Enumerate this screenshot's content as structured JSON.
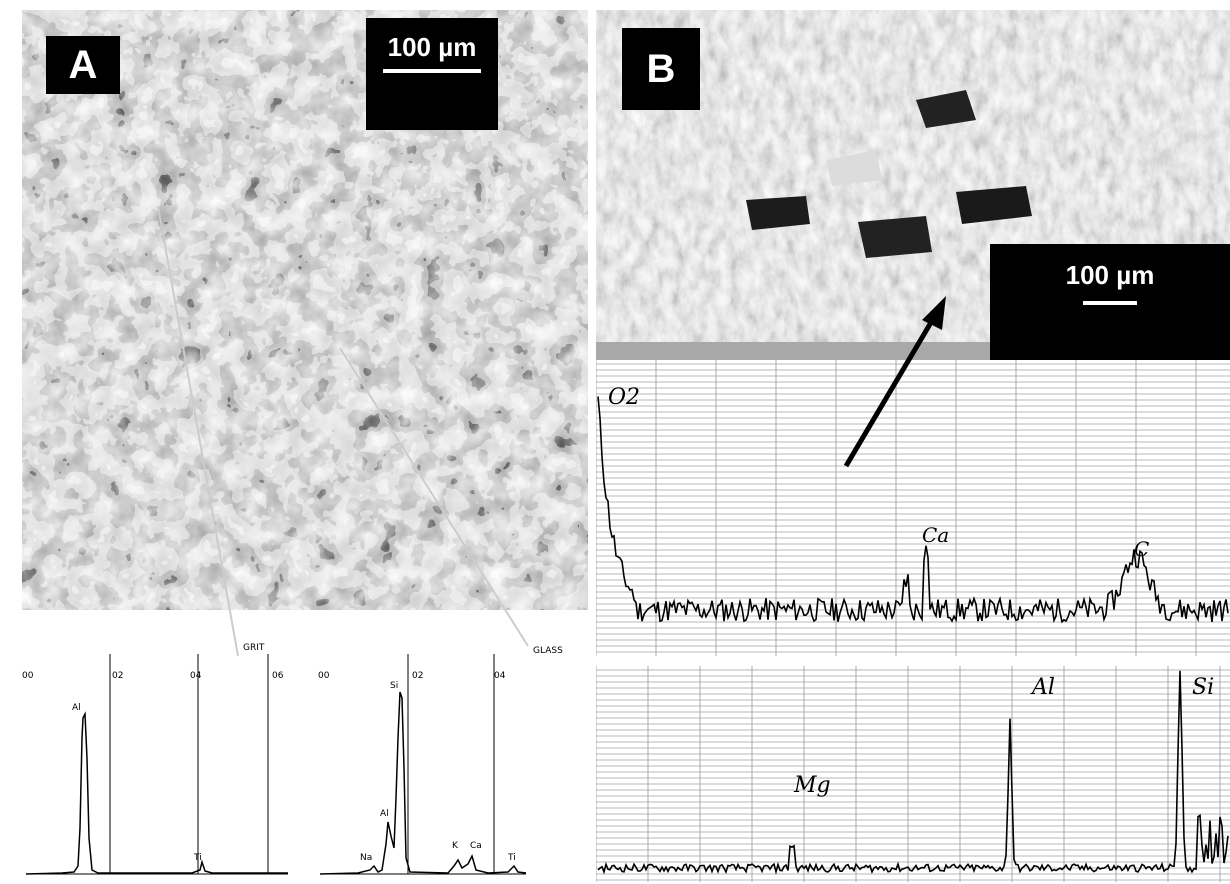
{
  "panelA": {
    "label": "A",
    "scale_bar": "100 µm",
    "annotations": {
      "grit": "GRIT",
      "glass": "GLASS"
    },
    "spectrum_grit": {
      "ticks": [
        "00",
        "02",
        "04",
        "06"
      ],
      "peaks": [
        "Al",
        "Ti"
      ]
    },
    "spectrum_glass": {
      "ticks": [
        "00",
        "02",
        "04"
      ],
      "peaks": [
        "Na",
        "Al",
        "Si",
        "K",
        "Ca",
        "Ti"
      ]
    }
  },
  "panelB": {
    "label": "B",
    "scale_bar": "100 µm",
    "spectrum_top": {
      "peaks": [
        "O2",
        "Ca",
        "C"
      ]
    },
    "spectrum_bottom": {
      "peaks": [
        "Mg",
        "Al",
        "Si"
      ]
    }
  }
}
